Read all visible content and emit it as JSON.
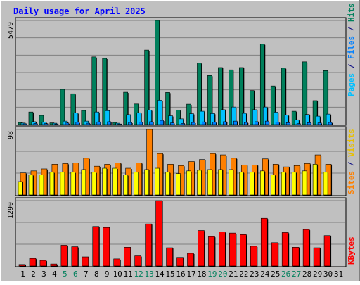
{
  "chart_data": {
    "type": "bar",
    "title": "Daily usage for April 2025",
    "categories": [
      "1",
      "2",
      "3",
      "4",
      "5",
      "6",
      "7",
      "8",
      "9",
      "10",
      "11",
      "12",
      "13",
      "14",
      "15",
      "16",
      "17",
      "18",
      "19",
      "20",
      "21",
      "22",
      "23",
      "24",
      "25",
      "26",
      "27",
      "28",
      "29",
      "30",
      "31"
    ],
    "weekend_days": [
      "5",
      "6",
      "12",
      "13",
      "19",
      "20",
      "26",
      "27"
    ],
    "panels": [
      {
        "id": "hits-files-pages",
        "max_label": "5479",
        "ylim": [
          0,
          5479
        ],
        "grid": true,
        "series": [
          {
            "name": "Hits",
            "color": "#00805c",
            "values": [
              110,
              660,
              480,
              90,
              1850,
              1620,
              740,
              3560,
              3480,
              110,
              1700,
              1080,
              3920,
              5479,
              1690,
              760,
              1070,
              3230,
              2580,
              3000,
              2880,
              3000,
              1790,
              4230,
              2030,
              2970,
              700,
              3300,
              1260,
              2840,
              0
            ]
          },
          {
            "name": "Files",
            "color": "#00c0ff",
            "values": [
              80,
              150,
              120,
              70,
              180,
              610,
              180,
              660,
              730,
              70,
              520,
              620,
              760,
              1280,
              460,
              300,
              570,
              700,
              580,
              780,
              920,
              590,
              780,
              920,
              650,
              500,
              250,
              530,
              440,
              550,
              0
            ]
          },
          {
            "name": "Pages",
            "color": "#00c0ff",
            "values": [
              40,
              60,
              50,
              30,
              80,
              120,
              70,
              140,
              150,
              30,
              110,
              120,
              150,
              220,
              90,
              60,
              110,
              140,
              120,
              150,
              180,
              110,
              150,
              180,
              130,
              100,
              50,
              100,
              90,
              110,
              0
            ]
          }
        ]
      },
      {
        "id": "visits-sites",
        "max_label": "98",
        "ylim": [
          0,
          98
        ],
        "grid": true,
        "series": [
          {
            "name": "Visits",
            "color": "#ff8000",
            "values": [
              33,
              36,
              39,
              46,
              47,
              48,
              55,
              43,
              46,
              48,
              40,
              48,
              98,
              62,
              46,
              44,
              50,
              53,
              62,
              60,
              55,
              45,
              45,
              54,
              46,
              42,
              44,
              47,
              60,
              46,
              0
            ]
          },
          {
            "name": "Sites",
            "color": "#ffff00",
            "values": [
              20,
              30,
              30,
              34,
              34,
              34,
              38,
              34,
              40,
              40,
              30,
              34,
              38,
              40,
              34,
              32,
              36,
              37,
              38,
              38,
              38,
              34,
              34,
              36,
              30,
              34,
              34,
              36,
              46,
              34,
              0
            ]
          }
        ]
      },
      {
        "id": "kbytes",
        "max_label": "1290",
        "ylim": [
          0,
          1290
        ],
        "grid": true,
        "series": [
          {
            "name": "KBytes",
            "color": "#ff0000",
            "values": [
              30,
              150,
              110,
              40,
              410,
              380,
              180,
              780,
              760,
              140,
              370,
              200,
              830,
              1290,
              360,
              170,
              250,
              700,
              580,
              670,
              650,
              620,
              390,
              940,
              460,
              660,
              370,
              720,
              360,
              600,
              0
            ]
          }
        ]
      }
    ],
    "right_labels": {
      "top": [
        {
          "text": "Pages",
          "color": "#00c0ff"
        },
        {
          "text": " / ",
          "color": "#000080"
        },
        {
          "text": "Files",
          "color": "#0080ff"
        },
        {
          "text": " / ",
          "color": "#000080"
        },
        {
          "text": "Hits",
          "color": "#00805c"
        }
      ],
      "middle": [
        {
          "text": "Sites",
          "color": "#ff8000"
        },
        {
          "text": " / ",
          "color": "#000080"
        },
        {
          "text": "Visits",
          "color": "#e8c000"
        }
      ],
      "bottom": [
        {
          "text": "KBytes",
          "color": "#ff0000"
        }
      ]
    }
  }
}
